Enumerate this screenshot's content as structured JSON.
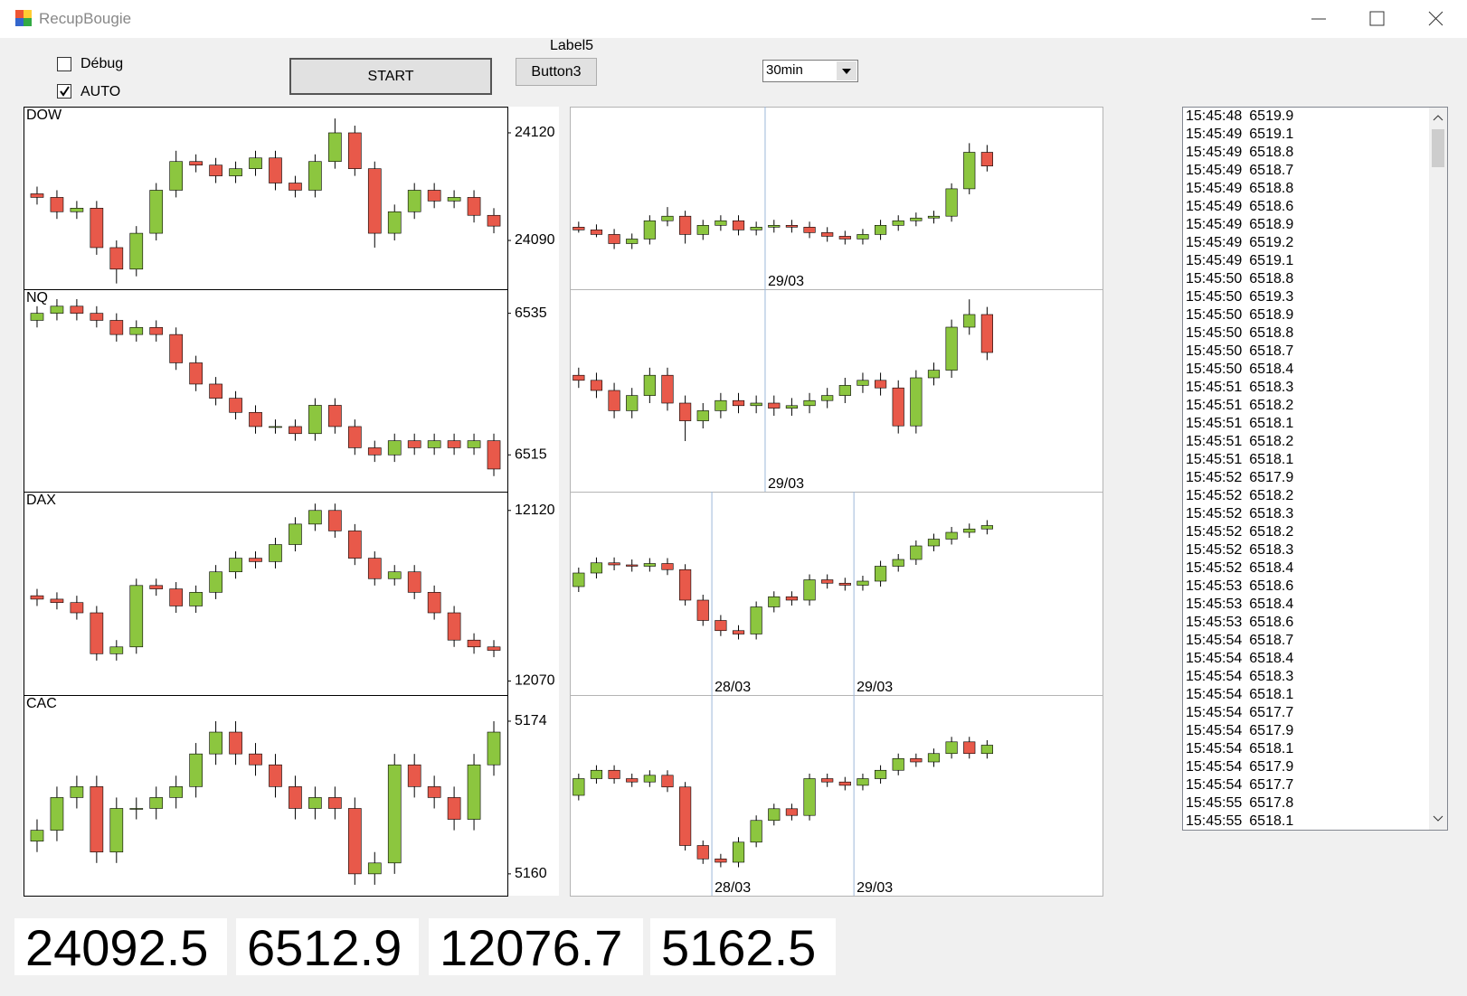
{
  "window": {
    "title": "RecupBougie"
  },
  "controls": {
    "debug": {
      "label": "Débug",
      "checked": false
    },
    "auto": {
      "label": "AUTO",
      "checked": true
    },
    "start": "START",
    "label5": "Label5",
    "button3": "Button3",
    "interval": "30min"
  },
  "chart_data": [
    {
      "type": "candlestick",
      "title": "DOW",
      "up_color": "#8cc63f",
      "down_color": "#e8594a",
      "ylim": [
        24076.4,
        24127.3
      ],
      "yticks": [
        24120,
        24090
      ],
      "open": [
        24103,
        24102,
        24098,
        24099,
        24088,
        24082,
        24092,
        24104,
        24112,
        24111,
        24108,
        24110,
        24113,
        24106,
        24104,
        24112,
        24120,
        24110,
        24092,
        24098,
        24104,
        24101,
        24102,
        24097
      ],
      "high": [
        24105,
        24104,
        24101,
        24101,
        24090,
        24094,
        24106,
        24115,
        24114,
        24113,
        24112,
        24115,
        24115,
        24108,
        24114,
        24124,
        24122,
        24112,
        24100,
        24106,
        24106,
        24104,
        24104,
        24099
      ],
      "low": [
        24100,
        24096,
        24096,
        24086,
        24078,
        24080,
        24090,
        24102,
        24109,
        24106,
        24106,
        24108,
        24104,
        24102,
        24102,
        24110,
        24108,
        24088,
        24090,
        24096,
        24099,
        24099,
        24095,
        24092
      ],
      "close": [
        24102,
        24098,
        24099,
        24088,
        24082,
        24092,
        24104,
        24112,
        24111,
        24108,
        24110,
        24113,
        24106,
        24104,
        24112,
        24120,
        24110,
        24092,
        24098,
        24104,
        24101,
        24102,
        24097,
        24094
      ]
    },
    {
      "type": "candlestick",
      "title": "NQ",
      "up_color": "#8cc63f",
      "down_color": "#e8594a",
      "ylim": [
        6509.8,
        6538.4
      ],
      "yticks": [
        6535,
        6515
      ],
      "open": [
        6534,
        6535,
        6536,
        6535,
        6534,
        6532,
        6533,
        6532,
        6528,
        6525,
        6523,
        6521,
        6519,
        6519,
        6518,
        6522,
        6519,
        6516,
        6515,
        6517,
        6516,
        6517,
        6516,
        6517
      ],
      "high": [
        6536,
        6537,
        6537,
        6536,
        6535,
        6534,
        6534,
        6533,
        6529,
        6526,
        6524,
        6522,
        6520,
        6520,
        6523,
        6523,
        6520,
        6517,
        6518,
        6518,
        6518,
        6518,
        6518,
        6518
      ],
      "low": [
        6533,
        6534,
        6534,
        6533,
        6531,
        6531,
        6531,
        6527,
        6524,
        6522,
        6520,
        6518,
        6518,
        6517,
        6517,
        6518,
        6515,
        6514,
        6514,
        6515,
        6515,
        6515,
        6515,
        6512
      ],
      "close": [
        6535,
        6536,
        6535,
        6534,
        6532,
        6533,
        6532,
        6528,
        6525,
        6523,
        6521,
        6519,
        6519,
        6518,
        6522,
        6519,
        6516,
        6515,
        6517,
        6516,
        6517,
        6516,
        6517,
        6513
      ]
    },
    {
      "type": "candlestick",
      "title": "DAX",
      "up_color": "#8cc63f",
      "down_color": "#e8594a",
      "ylim": [
        12065.9,
        12125.5
      ],
      "yticks": [
        12120,
        12070
      ],
      "open": [
        12095,
        12094,
        12093,
        12090,
        12078,
        12080,
        12098,
        12097,
        12092,
        12096,
        12102,
        12106,
        12105,
        12110,
        12116,
        12120,
        12114,
        12106,
        12100,
        12102,
        12096,
        12090,
        12082,
        12080
      ],
      "high": [
        12097,
        12096,
        12095,
        12092,
        12082,
        12100,
        12100,
        12099,
        12098,
        12104,
        12108,
        12108,
        12112,
        12118,
        12122,
        12122,
        12116,
        12108,
        12104,
        12104,
        12098,
        12092,
        12084,
        12082
      ],
      "low": [
        12092,
        12091,
        12088,
        12076,
        12076,
        12078,
        12095,
        12090,
        12090,
        12094,
        12100,
        12103,
        12103,
        12108,
        12114,
        12112,
        12104,
        12098,
        12098,
        12094,
        12088,
        12080,
        12078,
        12077
      ],
      "close": [
        12094,
        12093,
        12090,
        12078,
        12080,
        12098,
        12097,
        12092,
        12096,
        12102,
        12106,
        12105,
        12110,
        12116,
        12120,
        12114,
        12106,
        12100,
        12102,
        12096,
        12090,
        12082,
        12080,
        12079
      ]
    },
    {
      "type": "candlestick",
      "title": "CAC",
      "up_color": "#8cc63f",
      "down_color": "#e8594a",
      "ylim": [
        5158.0,
        5176.4
      ],
      "yticks": [
        5174,
        5160
      ],
      "open": [
        5163,
        5164,
        5167,
        5168,
        5162,
        5166,
        5166,
        5167,
        5168,
        5171,
        5173,
        5171,
        5170,
        5168,
        5166,
        5167,
        5166,
        5160,
        5161,
        5170,
        5168,
        5167,
        5165,
        5170
      ],
      "high": [
        5165,
        5168,
        5169,
        5169,
        5167,
        5167,
        5168,
        5169,
        5172,
        5174,
        5174,
        5172,
        5171,
        5169,
        5168,
        5168,
        5167,
        5162,
        5171,
        5171,
        5169,
        5168,
        5171,
        5174
      ],
      "low": [
        5162,
        5163,
        5166,
        5161,
        5161,
        5165,
        5165,
        5166,
        5167,
        5170,
        5170,
        5169,
        5167,
        5165,
        5165,
        5165,
        5159,
        5159,
        5160,
        5167,
        5166,
        5164,
        5164,
        5169
      ],
      "close": [
        5164,
        5167,
        5168,
        5162,
        5166,
        5166,
        5167,
        5168,
        5171,
        5173,
        5171,
        5170,
        5168,
        5166,
        5167,
        5166,
        5160,
        5161,
        5170,
        5168,
        5167,
        5165,
        5170,
        5173
      ]
    },
    {
      "type": "candlestick",
      "up_color": "#8cc63f",
      "down_color": "#e8594a",
      "ylim": [
        24000,
        24200
      ],
      "categories": [
        null,
        null,
        null,
        null,
        null,
        null,
        null,
        null,
        null,
        null,
        null,
        "29/03",
        null,
        null,
        null,
        null,
        null,
        null,
        null,
        null,
        null,
        null,
        null,
        null,
        null,
        null,
        null,
        null,
        null,
        null
      ],
      "open": [
        24068,
        24065,
        24060,
        24050,
        24055,
        24075,
        24080,
        24060,
        24070,
        24075,
        24065,
        24068,
        24070,
        24068,
        24062,
        24058,
        24055,
        24060,
        24070,
        24075,
        24078,
        24080,
        24110,
        24150,
        null,
        null,
        null,
        null,
        null,
        null
      ],
      "high": [
        24074,
        24071,
        24066,
        24061,
        24081,
        24090,
        24086,
        24076,
        24081,
        24081,
        24074,
        24076,
        24076,
        24074,
        24068,
        24064,
        24066,
        24076,
        24081,
        24084,
        24086,
        24116,
        24160,
        24158,
        null,
        null,
        null,
        null,
        null,
        null
      ],
      "low": [
        24062,
        24057,
        24044,
        24044,
        24049,
        24069,
        24050,
        24054,
        24064,
        24059,
        24059,
        24062,
        24062,
        24056,
        24052,
        24049,
        24049,
        24054,
        24064,
        24069,
        24072,
        24074,
        24104,
        24129,
        null,
        null,
        null,
        null,
        null,
        null
      ],
      "close": [
        24065,
        24060,
        24050,
        24055,
        24075,
        24080,
        24060,
        24070,
        24075,
        24065,
        24068,
        24070,
        24068,
        24062,
        24058,
        24055,
        24060,
        24070,
        24075,
        24078,
        24080,
        24110,
        24150,
        24135,
        null,
        null,
        null,
        null,
        null,
        null
      ]
    },
    {
      "type": "candlestick",
      "up_color": "#8cc63f",
      "down_color": "#e8594a",
      "ylim": [
        6480,
        6560
      ],
      "categories": [
        null,
        null,
        null,
        null,
        null,
        null,
        null,
        null,
        null,
        null,
        null,
        "29/03",
        null,
        null,
        null,
        null,
        null,
        null,
        null,
        null,
        null,
        null,
        null,
        null,
        null,
        null,
        null,
        null,
        null,
        null
      ],
      "open": [
        6526,
        6524,
        6520,
        6512,
        6518,
        6526,
        6515,
        6508,
        6512,
        6516,
        6514,
        6515,
        6513,
        6514,
        6516,
        6518,
        6522,
        6524,
        6521,
        6506,
        6525,
        6528,
        6545,
        6550,
        null,
        null,
        null,
        null,
        null,
        null
      ],
      "high": [
        6529,
        6527,
        6523,
        6521,
        6529,
        6529,
        6518,
        6515,
        6519,
        6519,
        6518,
        6518,
        6517,
        6519,
        6521,
        6525,
        6527,
        6527,
        6524,
        6528,
        6531,
        6548,
        6556,
        6553,
        null,
        null,
        null,
        null,
        null,
        null
      ],
      "low": [
        6521,
        6517,
        6509,
        6509,
        6515,
        6512,
        6500,
        6505,
        6509,
        6511,
        6511,
        6510,
        6510,
        6511,
        6513,
        6515,
        6519,
        6518,
        6503,
        6503,
        6522,
        6525,
        6542,
        6532,
        null,
        null,
        null,
        null,
        null,
        null
      ],
      "close": [
        6524,
        6520,
        6512,
        6518,
        6526,
        6515,
        6508,
        6512,
        6516,
        6514,
        6515,
        6513,
        6514,
        6516,
        6518,
        6522,
        6524,
        6521,
        6506,
        6525,
        6528,
        6545,
        6550,
        6535,
        null,
        null,
        null,
        null,
        null,
        null
      ]
    },
    {
      "type": "candlestick",
      "up_color": "#8cc63f",
      "down_color": "#e8594a",
      "ylim": [
        11900,
        12200
      ],
      "categories": [
        null,
        null,
        null,
        null,
        null,
        null,
        null,
        null,
        "28/03",
        null,
        null,
        null,
        null,
        null,
        null,
        null,
        "29/03",
        null,
        null,
        null,
        null,
        null,
        null,
        null,
        null,
        null,
        null,
        null,
        null,
        null
      ],
      "open": [
        12060,
        12080,
        12095,
        12092,
        12090,
        12094,
        12085,
        12040,
        12010,
        11995,
        11990,
        12030,
        12045,
        12040,
        12070,
        12065,
        12062,
        12068,
        12090,
        12100,
        12120,
        12130,
        12140,
        12145,
        null,
        null,
        null,
        null,
        null,
        null
      ],
      "high": [
        12088,
        12103,
        12103,
        12100,
        12102,
        12102,
        12093,
        12048,
        12018,
        12003,
        12038,
        12053,
        12053,
        12078,
        12078,
        12073,
        12076,
        12098,
        12108,
        12128,
        12138,
        12148,
        12153,
        12158,
        null,
        null,
        null,
        null,
        null,
        null
      ],
      "low": [
        12052,
        12072,
        12084,
        12082,
        12082,
        12077,
        12032,
        12002,
        11987,
        11982,
        11982,
        12022,
        12032,
        12032,
        12057,
        12054,
        12054,
        12060,
        12082,
        12092,
        12112,
        12122,
        12132,
        12137,
        null,
        null,
        null,
        null,
        null,
        null
      ],
      "close": [
        12080,
        12095,
        12092,
        12090,
        12094,
        12085,
        12040,
        12010,
        11995,
        11990,
        12030,
        12045,
        12040,
        12070,
        12065,
        12062,
        12068,
        12090,
        12100,
        12120,
        12130,
        12140,
        12145,
        12150,
        null,
        null,
        null,
        null,
        null,
        null
      ]
    },
    {
      "type": "candlestick",
      "up_color": "#8cc63f",
      "down_color": "#e8594a",
      "ylim": [
        5080,
        5200
      ],
      "categories": [
        null,
        null,
        null,
        null,
        null,
        null,
        null,
        null,
        "28/03",
        null,
        null,
        null,
        null,
        null,
        null,
        null,
        "29/03",
        null,
        null,
        null,
        null,
        null,
        null,
        null,
        null,
        null,
        null,
        null,
        null,
        null
      ],
      "open": [
        5140,
        5150,
        5155,
        5150,
        5148,
        5152,
        5145,
        5110,
        5102,
        5100,
        5112,
        5125,
        5132,
        5128,
        5150,
        5148,
        5146,
        5150,
        5155,
        5162,
        5160,
        5165,
        5172,
        5165,
        null,
        null,
        null,
        null,
        null,
        null
      ],
      "high": [
        5153,
        5158,
        5158,
        5153,
        5155,
        5155,
        5148,
        5113,
        5105,
        5115,
        5128,
        5135,
        5135,
        5153,
        5153,
        5151,
        5153,
        5158,
        5165,
        5165,
        5168,
        5175,
        5175,
        5173,
        null,
        null,
        null,
        null,
        null,
        null
      ],
      "low": [
        5137,
        5147,
        5147,
        5145,
        5145,
        5142,
        5107,
        5099,
        5097,
        5097,
        5109,
        5122,
        5125,
        5125,
        5145,
        5143,
        5143,
        5147,
        5152,
        5157,
        5157,
        5162,
        5162,
        5162,
        null,
        null,
        null,
        null,
        null,
        null
      ],
      "close": [
        5150,
        5155,
        5150,
        5148,
        5152,
        5145,
        5110,
        5102,
        5100,
        5112,
        5125,
        5132,
        5128,
        5150,
        5148,
        5146,
        5150,
        5155,
        5162,
        5160,
        5165,
        5172,
        5165,
        5170,
        null,
        null,
        null,
        null,
        null,
        null
      ]
    }
  ],
  "log": [
    {
      "time": "15:45:48",
      "value": 6519.9
    },
    {
      "time": "15:45:49",
      "value": 6519.1
    },
    {
      "time": "15:45:49",
      "value": 6518.8
    },
    {
      "time": "15:45:49",
      "value": 6518.7
    },
    {
      "time": "15:45:49",
      "value": 6518.8
    },
    {
      "time": "15:45:49",
      "value": 6518.6
    },
    {
      "time": "15:45:49",
      "value": 6518.9
    },
    {
      "time": "15:45:49",
      "value": 6519.2
    },
    {
      "time": "15:45:49",
      "value": 6519.1
    },
    {
      "time": "15:45:50",
      "value": 6518.8
    },
    {
      "time": "15:45:50",
      "value": 6519.3
    },
    {
      "time": "15:45:50",
      "value": 6518.9
    },
    {
      "time": "15:45:50",
      "value": 6518.8
    },
    {
      "time": "15:45:50",
      "value": 6518.7
    },
    {
      "time": "15:45:50",
      "value": 6518.4
    },
    {
      "time": "15:45:51",
      "value": 6518.3
    },
    {
      "time": "15:45:51",
      "value": 6518.2
    },
    {
      "time": "15:45:51",
      "value": 6518.1
    },
    {
      "time": "15:45:51",
      "value": 6518.2
    },
    {
      "time": "15:45:51",
      "value": 6518.1
    },
    {
      "time": "15:45:52",
      "value": 6517.9
    },
    {
      "time": "15:45:52",
      "value": 6518.2
    },
    {
      "time": "15:45:52",
      "value": 6518.3
    },
    {
      "time": "15:45:52",
      "value": 6518.2
    },
    {
      "time": "15:45:52",
      "value": 6518.3
    },
    {
      "time": "15:45:52",
      "value": 6518.4
    },
    {
      "time": "15:45:53",
      "value": 6518.6
    },
    {
      "time": "15:45:53",
      "value": 6518.4
    },
    {
      "time": "15:45:53",
      "value": 6518.6
    },
    {
      "time": "15:45:54",
      "value": 6518.7
    },
    {
      "time": "15:45:54",
      "value": 6518.4
    },
    {
      "time": "15:45:54",
      "value": 6518.3
    },
    {
      "time": "15:45:54",
      "value": 6518.1
    },
    {
      "time": "15:45:54",
      "value": 6517.7
    },
    {
      "time": "15:45:54",
      "value": 6517.9
    },
    {
      "time": "15:45:54",
      "value": 6518.1
    },
    {
      "time": "15:45:54",
      "value": 6517.9
    },
    {
      "time": "15:45:54",
      "value": 6517.7
    },
    {
      "time": "15:45:55",
      "value": 6517.8
    },
    {
      "time": "15:45:55",
      "value": 6518.1
    }
  ],
  "prices": [
    24092.5,
    6512.9,
    12076.7,
    5162.5
  ]
}
